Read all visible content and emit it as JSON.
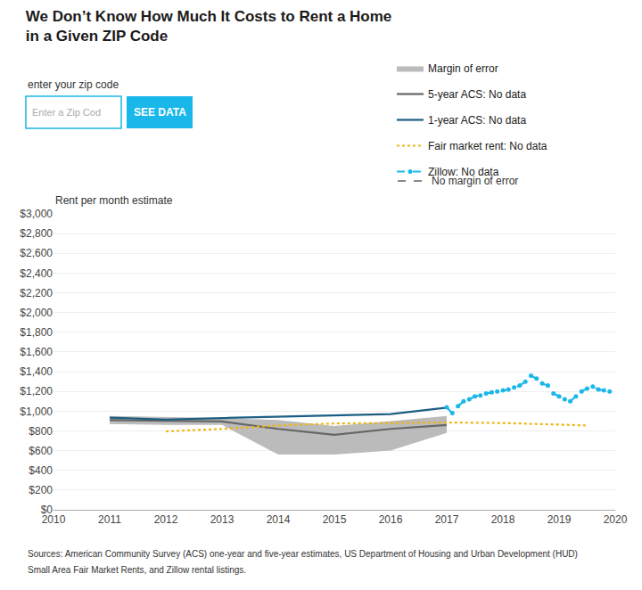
{
  "chart_data": {
    "type": "line",
    "title": "We Don’t Know How Much It Costs to Rent a Home\nin a Given ZIP Code",
    "ylabel": "Rent per month estimate",
    "xlim": [
      2010,
      2020
    ],
    "ylim": [
      0,
      3000
    ],
    "xticks": [
      2010,
      2011,
      2012,
      2013,
      2014,
      2015,
      2016,
      2017,
      2018,
      2019,
      2020
    ],
    "yticks": [
      {
        "value": 0,
        "label": "$0"
      },
      {
        "value": 200,
        "label": "$200"
      },
      {
        "value": 400,
        "label": "$400"
      },
      {
        "value": 600,
        "label": "$600"
      },
      {
        "value": 800,
        "label": "$800"
      },
      {
        "value": 1000,
        "label": "$1,000"
      },
      {
        "value": 1200,
        "label": "$1,200"
      },
      {
        "value": 1400,
        "label": "$1,400"
      },
      {
        "value": 1600,
        "label": "$1,600"
      },
      {
        "value": 1800,
        "label": "$1,800"
      },
      {
        "value": 2000,
        "label": "$2,000"
      },
      {
        "value": 2200,
        "label": "$2,200"
      },
      {
        "value": 2400,
        "label": "$2,400"
      },
      {
        "value": 2600,
        "label": "$2,600"
      },
      {
        "value": 2800,
        "label": "$2,800"
      },
      {
        "value": 3000,
        "label": "$3,000"
      }
    ],
    "grid": "y",
    "series": [
      {
        "name": "Margin of error",
        "type": "band",
        "color": "#bbbbbb",
        "x": [
          2011,
          2012,
          2013,
          2014,
          2015,
          2016,
          2017
        ],
        "lower": [
          870,
          860,
          860,
          560,
          560,
          600,
          780
        ],
        "upper": [
          950,
          940,
          930,
          910,
          850,
          900,
          950
        ]
      },
      {
        "name": "5-year ACS: No data",
        "color": "#666666",
        "line_style": "solid",
        "x": [
          2011,
          2012,
          2013,
          2014,
          2015,
          2016,
          2017
        ],
        "values": [
          910,
          900,
          895,
          820,
          760,
          820,
          860
        ]
      },
      {
        "name": "1-year ACS: No data",
        "color": "#1b5e82",
        "line_style": "solid",
        "x": [
          2011,
          2012,
          2013,
          2014,
          2015,
          2016,
          2017
        ],
        "values": [
          935,
          915,
          930,
          945,
          960,
          970,
          1035
        ]
      },
      {
        "name": "Fair market rent: No data",
        "color": "#f0b513",
        "line_style": "dotted",
        "x": [
          2012,
          2013,
          2014,
          2015,
          2016,
          2017,
          2018,
          2019,
          2019.5
        ],
        "values": [
          795,
          820,
          855,
          875,
          880,
          885,
          880,
          860,
          855
        ]
      },
      {
        "name": "Zillow: No data",
        "color": "#1ab7ea",
        "line_style": "dashed",
        "marker": "circle",
        "x": [
          2017.0,
          2017.1,
          2017.2,
          2017.3,
          2017.4,
          2017.5,
          2017.6,
          2017.7,
          2017.8,
          2017.9,
          2018.0,
          2018.1,
          2018.2,
          2018.3,
          2018.4,
          2018.5,
          2018.6,
          2018.7,
          2018.8,
          2018.9,
          2019.0,
          2019.1,
          2019.2,
          2019.3,
          2019.4,
          2019.5,
          2019.6,
          2019.7,
          2019.8,
          2019.9
        ],
        "values": [
          1040,
          980,
          1050,
          1100,
          1120,
          1150,
          1160,
          1180,
          1190,
          1200,
          1210,
          1220,
          1240,
          1260,
          1300,
          1360,
          1330,
          1280,
          1260,
          1180,
          1150,
          1120,
          1100,
          1150,
          1200,
          1230,
          1250,
          1220,
          1210,
          1200
        ]
      }
    ],
    "annotations": [
      "No margin of error",
      "enter your zip code",
      "Enter a Zip Cod",
      "SEE DATA",
      "Sources: American Community Survey (ACS) one-year and five-year estimates, US Department of Housing and Urban Development (HUD)",
      "Small Area Fair Market Rents, and Zillow rental listings."
    ]
  }
}
